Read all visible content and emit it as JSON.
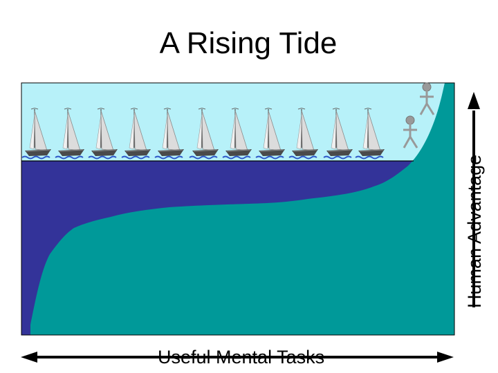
{
  "slide": {
    "title": "A Rising Tide",
    "x_axis_label": "Useful Mental Tasks",
    "y_axis_label": "Human Advantage"
  },
  "colors": {
    "sky": "#b7f1f9",
    "water": "#333399",
    "land": "#009999",
    "figure": "#999999",
    "arrow": "#000000"
  },
  "icons": {
    "boat": "sailboat-icon",
    "person": "stick-figure-icon"
  },
  "boat_count": 11
}
